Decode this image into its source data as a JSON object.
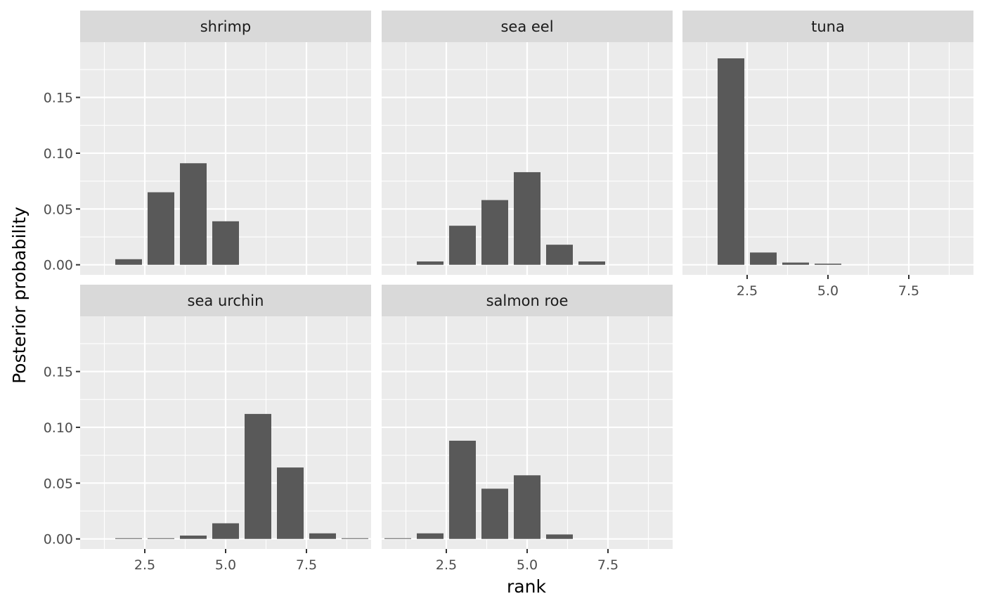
{
  "chart_data": {
    "type": "bar",
    "style": "facet-grid",
    "xlabel": "rank",
    "ylabel": "Posterior probability",
    "xlim": [
      0.5,
      9.5
    ],
    "ylim": [
      -0.009,
      0.1995
    ],
    "x_ticks": [
      {
        "value": 2.5,
        "label": "2.5"
      },
      {
        "value": 5.0,
        "label": "5.0"
      },
      {
        "value": 7.5,
        "label": "7.5"
      }
    ],
    "y_ticks": [
      {
        "value": 0.0,
        "label": "0.00"
      },
      {
        "value": 0.05,
        "label": "0.05"
      },
      {
        "value": 0.1,
        "label": "0.10"
      },
      {
        "value": 0.15,
        "label": "0.15"
      }
    ],
    "grid": true,
    "colors": {
      "bar": "#595959",
      "panel_background": "#ebebeb",
      "grid": "#ffffff",
      "strip_background": "#d9d9d9"
    },
    "panels": [
      {
        "name": "shrimp",
        "x": [
          1,
          2,
          3,
          4,
          5,
          6,
          7,
          8,
          9
        ],
        "values": [
          0.0,
          0.005,
          0.065,
          0.091,
          0.039,
          0.0,
          0.0,
          0.0,
          0.0
        ]
      },
      {
        "name": "sea eel",
        "x": [
          1,
          2,
          3,
          4,
          5,
          6,
          7,
          8,
          9
        ],
        "values": [
          0.0,
          0.003,
          0.035,
          0.058,
          0.083,
          0.018,
          0.003,
          0.0,
          0.0
        ]
      },
      {
        "name": "tuna",
        "x": [
          1,
          2,
          3,
          4,
          5,
          6,
          7,
          8,
          9
        ],
        "values": [
          0.0,
          0.185,
          0.011,
          0.002,
          0.001,
          0.0,
          0.0,
          0.0,
          0.0
        ]
      },
      {
        "name": "sea urchin",
        "x": [
          1,
          2,
          3,
          4,
          5,
          6,
          7,
          8,
          9
        ],
        "values": [
          0.0,
          0.0005,
          0.0005,
          0.003,
          0.014,
          0.112,
          0.064,
          0.005,
          0.0005
        ]
      },
      {
        "name": "salmon roe",
        "x": [
          1,
          2,
          3,
          4,
          5,
          6,
          7,
          8,
          9
        ],
        "values": [
          0.0005,
          0.005,
          0.088,
          0.045,
          0.057,
          0.004,
          0.0,
          0.0,
          0.0
        ]
      }
    ]
  }
}
